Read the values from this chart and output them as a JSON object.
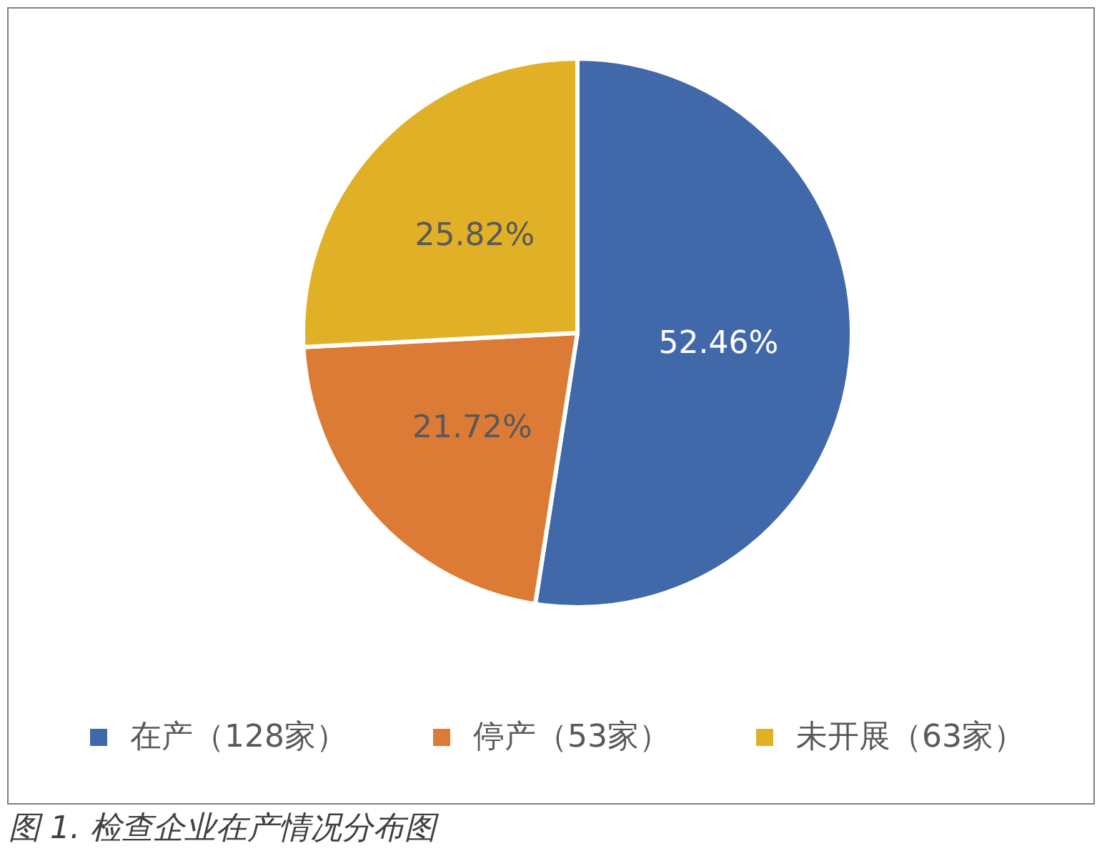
{
  "chart_data": {
    "type": "pie",
    "categories": [
      "在产（128家）",
      "停产（53家）",
      "未开展（63家）"
    ],
    "values": [
      52.46,
      21.72,
      25.82
    ],
    "value_labels": [
      "52.46%",
      "21.72%",
      "25.82%"
    ],
    "colors": [
      "#4169aa",
      "#dc7b35",
      "#e0b026"
    ],
    "legend": "bottom",
    "annotations": [
      "图 1. 检查企业在产情况分布图"
    ]
  }
}
